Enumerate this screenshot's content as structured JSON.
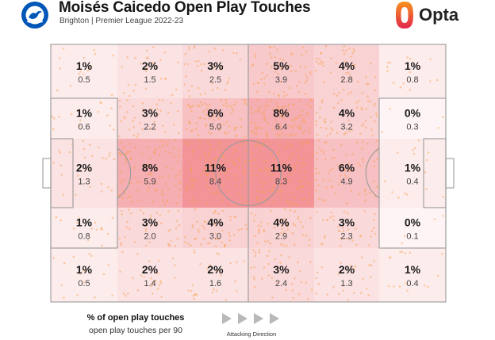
{
  "header": {
    "title": "Moisés Caicedo Open Play Touches",
    "subtitle": "Brighton | Premier League 2022-23",
    "brand": "Opta",
    "badge_text": "BRIGHTON & HOVE ALBION"
  },
  "chart_data": {
    "type": "heatmap",
    "layout": "pitch zones, 6 columns x 5 rows",
    "attacking_direction": "left-to-right",
    "max_share": 11,
    "colors": {
      "heat": "#E8474E",
      "scatter": "#F9A04A",
      "lines": "#999999"
    },
    "rows": [
      {
        "cells": [
          {
            "pct": "1%",
            "per90": "0.5",
            "share": 1
          },
          {
            "pct": "2%",
            "per90": "1.5",
            "share": 2
          },
          {
            "pct": "3%",
            "per90": "2.5",
            "share": 3
          },
          {
            "pct": "5%",
            "per90": "3.9",
            "share": 5
          },
          {
            "pct": "4%",
            "per90": "2.8",
            "share": 4
          },
          {
            "pct": "1%",
            "per90": "0.8",
            "share": 1
          }
        ]
      },
      {
        "cells": [
          {
            "pct": "1%",
            "per90": "0.6",
            "share": 1
          },
          {
            "pct": "3%",
            "per90": "2.2",
            "share": 3
          },
          {
            "pct": "6%",
            "per90": "5.0",
            "share": 6
          },
          {
            "pct": "8%",
            "per90": "6.4",
            "share": 8
          },
          {
            "pct": "4%",
            "per90": "3.2",
            "share": 4
          },
          {
            "pct": "0%",
            "per90": "0.3",
            "share": 0
          }
        ]
      },
      {
        "cells": [
          {
            "pct": "2%",
            "per90": "1.3",
            "share": 2
          },
          {
            "pct": "8%",
            "per90": "5.9",
            "share": 8
          },
          {
            "pct": "11%",
            "per90": "8.4",
            "share": 11
          },
          {
            "pct": "11%",
            "per90": "8.3",
            "share": 11
          },
          {
            "pct": "6%",
            "per90": "4.9",
            "share": 6
          },
          {
            "pct": "1%",
            "per90": "0.4",
            "share": 1
          }
        ]
      },
      {
        "cells": [
          {
            "pct": "1%",
            "per90": "0.8",
            "share": 1
          },
          {
            "pct": "3%",
            "per90": "2.0",
            "share": 3
          },
          {
            "pct": "4%",
            "per90": "3.0",
            "share": 4
          },
          {
            "pct": "4%",
            "per90": "2.9",
            "share": 4
          },
          {
            "pct": "3%",
            "per90": "2.3",
            "share": 3
          },
          {
            "pct": "0%",
            "per90": "0.1",
            "share": 0
          }
        ]
      },
      {
        "cells": [
          {
            "pct": "1%",
            "per90": "0.5",
            "share": 1
          },
          {
            "pct": "2%",
            "per90": "1.4",
            "share": 2
          },
          {
            "pct": "2%",
            "per90": "1.6",
            "share": 2
          },
          {
            "pct": "3%",
            "per90": "2.4",
            "share": 3
          },
          {
            "pct": "2%",
            "per90": "1.3",
            "share": 2
          },
          {
            "pct": "1%",
            "per90": "0.4",
            "share": 1
          }
        ]
      }
    ]
  },
  "legend": {
    "primary": "% of open play touches",
    "secondary": "open play touches per 90",
    "direction_label": "Attacking Direction"
  }
}
